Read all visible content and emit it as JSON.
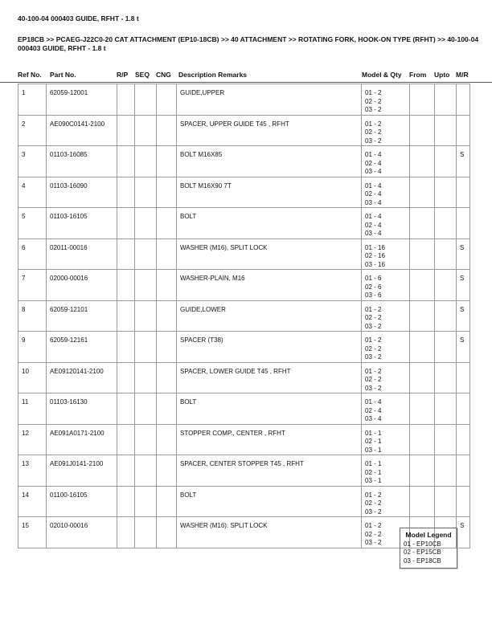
{
  "title": "40-100-04 000403 GUIDE, RFHT - 1.8 t",
  "breadcrumb": "EP18CB >> PCAEG-J22C0-20 CAT ATTACHMENT (EP10-18CB) >> 40 ATTACHMENT >> ROTATING FORK, HOOK-ON TYPE (RFHT) >> 40-100-04 000403 GUIDE, RFHT - 1.8 t",
  "headers": {
    "ref": "Ref No.",
    "part": "Part No.",
    "rp": "R/P",
    "seq": "SEQ",
    "cng": "CNG",
    "desc": "Description Remarks",
    "model": "Model & Qty",
    "from": "From",
    "upto": "Upto",
    "mr": "M/R"
  },
  "rows": [
    {
      "ref": "1",
      "part": "62059-12001",
      "desc": "GUIDE,UPPER",
      "qty": [
        "01 - 2",
        "02 - 2",
        "03 - 2"
      ],
      "mr": ""
    },
    {
      "ref": "2",
      "part": "AE090C0141-2100",
      "desc": "SPACER, UPPER GUIDE T45 , RFHT",
      "qty": [
        "01 - 2",
        "02 - 2",
        "03 - 2"
      ],
      "mr": ""
    },
    {
      "ref": "3",
      "part": "01103-16085",
      "desc": "BOLT M16X85",
      "qty": [
        "01 - 4",
        "02 - 4",
        "03 - 4"
      ],
      "mr": "S"
    },
    {
      "ref": "4",
      "part": "01103-16090",
      "desc": "BOLT M16X90 7T",
      "qty": [
        "01 - 4",
        "02 - 4",
        "03 - 4"
      ],
      "mr": ""
    },
    {
      "ref": "5",
      "part": "01103-16105",
      "desc": "BOLT",
      "qty": [
        "01 - 4",
        "02 - 4",
        "03 - 4"
      ],
      "mr": ""
    },
    {
      "ref": "6",
      "part": "02011-00016",
      "desc": "WASHER (M16), SPLIT LOCK",
      "qty": [
        "01 - 16",
        "02 - 16",
        "03 - 16"
      ],
      "mr": "S"
    },
    {
      "ref": "7",
      "part": "02000-00016",
      "desc": "WASHER-PLAIN, M16",
      "qty": [
        "01 - 6",
        "02 - 6",
        "03 - 6"
      ],
      "mr": "S"
    },
    {
      "ref": "8",
      "part": "62059-12101",
      "desc": "GUIDE,LOWER",
      "qty": [
        "01 - 2",
        "02 - 2",
        "03 - 2"
      ],
      "mr": "S"
    },
    {
      "ref": "9",
      "part": "62059-12161",
      "desc": "SPACER (T38)",
      "qty": [
        "01 - 2",
        "02 - 2",
        "03 - 2"
      ],
      "mr": "S"
    },
    {
      "ref": "10",
      "part": "AE09120141-2100",
      "desc": "SPACER, LOWER GUIDE T45 , RFHT",
      "qty": [
        "01 - 2",
        "02 - 2",
        "03 - 2"
      ],
      "mr": ""
    },
    {
      "ref": "11",
      "part": "01103-16130",
      "desc": "BOLT",
      "qty": [
        "01 - 4",
        "02 - 4",
        "03 - 4"
      ],
      "mr": ""
    },
    {
      "ref": "12",
      "part": "AE091A0171-2100",
      "desc": "STOPPER COMP., CENTER , RFHT",
      "qty": [
        "01 - 1",
        "02 - 1",
        "03 - 1"
      ],
      "mr": ""
    },
    {
      "ref": "13",
      "part": "AE091J0141-2100",
      "desc": "SPACER, CENTER STOPPER  T45 , RFHT",
      "qty": [
        "01 - 1",
        "02 - 1",
        "03 - 1"
      ],
      "mr": ""
    },
    {
      "ref": "14",
      "part": "01100-16105",
      "desc": "BOLT",
      "qty": [
        "01 - 2",
        "02 - 2",
        "03 - 2"
      ],
      "mr": ""
    },
    {
      "ref": "15",
      "part": "02010-00016",
      "desc": "WASHER (M16): SPLIT LOCK",
      "qty": [
        "01 - 2",
        "02 - 2",
        "03 - 2"
      ],
      "mr": "S"
    }
  ],
  "legend": {
    "title": "Model Legend",
    "items": [
      "01 - EP10CB",
      "02 - EP15CB",
      "03 - EP18CB"
    ]
  }
}
